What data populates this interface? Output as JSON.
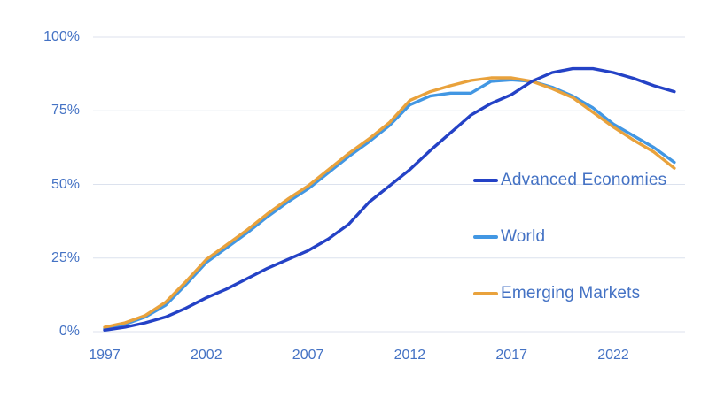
{
  "chart_data": {
    "type": "line",
    "title": "",
    "xlabel": "",
    "ylabel": "",
    "ylim": [
      0,
      100
    ],
    "grid": "horizontal",
    "legend_position": "inside-right",
    "colors": {
      "axis_label": "#4472C4",
      "gridline": "#DCE2EE",
      "background": "#FFFFFF"
    },
    "x": [
      1997,
      1998,
      1999,
      2000,
      2001,
      2002,
      2003,
      2004,
      2005,
      2006,
      2007,
      2008,
      2009,
      2010,
      2011,
      2012,
      2013,
      2014,
      2015,
      2016,
      2017,
      2018,
      2019,
      2020,
      2021,
      2022,
      2023,
      2024,
      2025
    ],
    "series": [
      {
        "name": "Advanced Economies",
        "color": "#2442C6",
        "values": [
          0.5,
          1.5,
          3,
          5,
          8,
          11.5,
          14.5,
          18,
          21.5,
          24.5,
          27.5,
          31.5,
          36.5,
          44,
          49.5,
          55,
          61.5,
          67.5,
          73.5,
          77.5,
          80.5,
          85,
          88,
          89.3,
          89.3,
          88,
          86,
          83.5,
          81.5
        ]
      },
      {
        "name": "World",
        "color": "#4297E3",
        "values": [
          1,
          2.5,
          5,
          9,
          16,
          23.5,
          28.5,
          33.5,
          39,
          44,
          48.5,
          54,
          59.5,
          64.5,
          70,
          77,
          80,
          81,
          81,
          85,
          85.5,
          85,
          83,
          80,
          76,
          70.5,
          66.5,
          62.5,
          57.5
        ]
      },
      {
        "name": "Emerging Markets",
        "color": "#E9A23C",
        "values": [
          1.5,
          3,
          5.5,
          10,
          17,
          24.5,
          29.5,
          34.5,
          40,
          45,
          49.5,
          55,
          60.5,
          65.5,
          71,
          78.5,
          81.5,
          83.5,
          85.3,
          86.2,
          86.2,
          85,
          82.5,
          79.5,
          74.5,
          69.5,
          65,
          61,
          55.5
        ]
      }
    ],
    "yticks": [
      {
        "label": "0%",
        "value": 0
      },
      {
        "label": "25%",
        "value": 25
      },
      {
        "label": "50%",
        "value": 50
      },
      {
        "label": "75%",
        "value": 75
      },
      {
        "label": "100%",
        "value": 100
      }
    ],
    "xticks": [
      {
        "label": "1997",
        "value": 1997
      },
      {
        "label": "2002",
        "value": 2002
      },
      {
        "label": "2007",
        "value": 2007
      },
      {
        "label": "2012",
        "value": 2012
      },
      {
        "label": "2017",
        "value": 2017
      },
      {
        "label": "2022",
        "value": 2022
      }
    ]
  }
}
